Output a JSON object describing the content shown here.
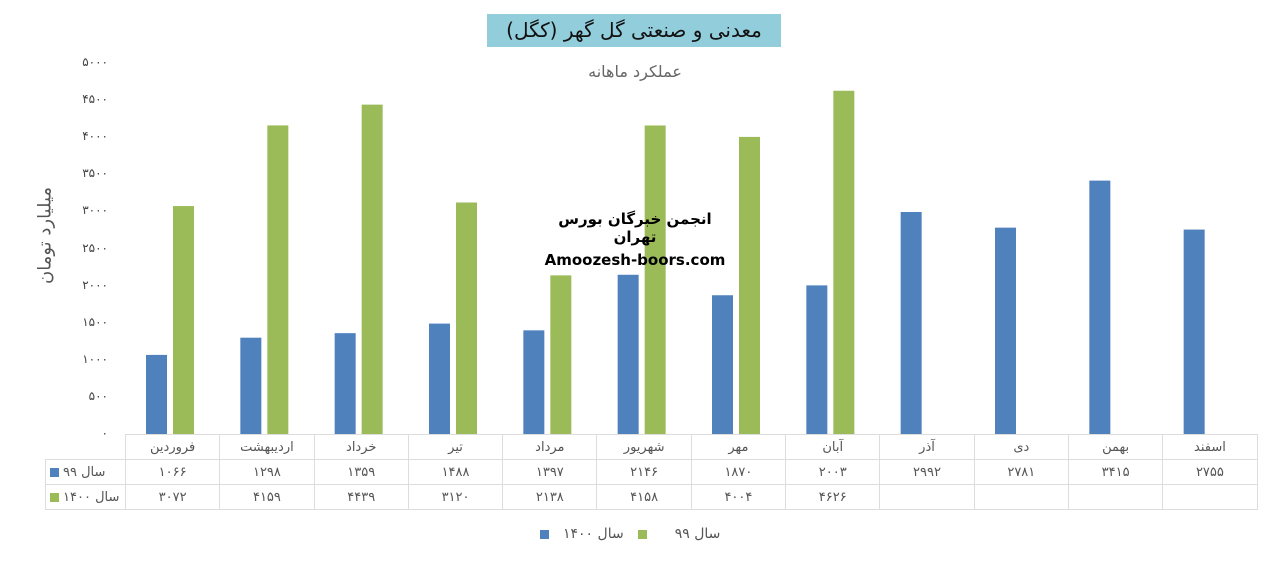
{
  "colors": {
    "series_99": "#4f81bd",
    "series_1400": "#9bbb59",
    "title_bg": "#92cddc"
  },
  "watermark": {
    "line1": "انجمن خبرگان بورس تهران",
    "line2": "Amoozesh-boors.com"
  },
  "chart_data": {
    "type": "bar",
    "title": "معدنی و صنعتی گل گهر (کگل)",
    "subtitle": "عملکرد ماهانه",
    "ylabel": "میلیارد تومان",
    "xlabel": "",
    "ylim": [
      0,
      5000
    ],
    "yticks": [
      "۰",
      "۵۰۰",
      "۱۰۰۰",
      "۱۵۰۰",
      "۲۰۰۰",
      "۲۵۰۰",
      "۳۰۰۰",
      "۳۵۰۰",
      "۴۰۰۰",
      "۴۵۰۰",
      "۵۰۰۰"
    ],
    "grid": false,
    "legend": "bottom",
    "categories": [
      "فروردین",
      "اردیبهشت",
      "خرداد",
      "تیر",
      "مرداد",
      "شهریور",
      "مهر",
      "آبان",
      "آذر",
      "دی",
      "بهمن",
      "اسفند"
    ],
    "series": [
      {
        "name": "سال ۹۹",
        "values": [
          1066,
          1298,
          1359,
          1488,
          1397,
          2146,
          1870,
          2003,
          2992,
          2781,
          3415,
          2755
        ]
      },
      {
        "name": "سال ۱۴۰۰",
        "values": [
          3072,
          4159,
          4439,
          3120,
          2138,
          4158,
          4004,
          4626,
          null,
          null,
          null,
          null
        ]
      }
    ]
  }
}
